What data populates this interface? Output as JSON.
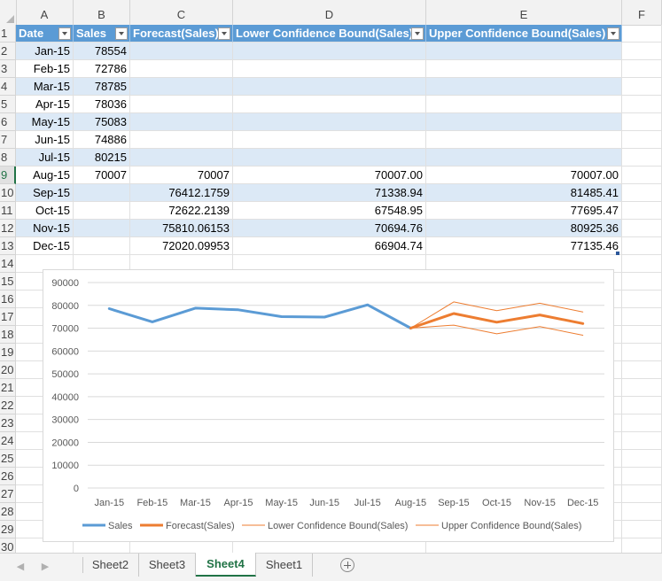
{
  "columns": [
    "A",
    "B",
    "C",
    "D",
    "E",
    "F"
  ],
  "row_numbers": [
    "1",
    "2",
    "3",
    "4",
    "5",
    "6",
    "7",
    "8",
    "9",
    "10",
    "11",
    "12",
    "13",
    "14",
    "15",
    "16",
    "17",
    "18",
    "19",
    "20",
    "21",
    "22",
    "23",
    "24",
    "25",
    "26",
    "27",
    "28",
    "29",
    "30"
  ],
  "table": {
    "headers": [
      "Date",
      "Sales",
      "Forecast(Sales)",
      "Lower Confidence Bound(Sales)",
      "Upper Confidence Bound(Sales)"
    ],
    "rows": [
      [
        "Jan-15",
        "78554",
        "",
        "",
        ""
      ],
      [
        "Feb-15",
        "72786",
        "",
        "",
        ""
      ],
      [
        "Mar-15",
        "78785",
        "",
        "",
        ""
      ],
      [
        "Apr-15",
        "78036",
        "",
        "",
        ""
      ],
      [
        "May-15",
        "75083",
        "",
        "",
        ""
      ],
      [
        "Jun-15",
        "74886",
        "",
        "",
        ""
      ],
      [
        "Jul-15",
        "80215",
        "",
        "",
        ""
      ],
      [
        "Aug-15",
        "70007",
        "70007",
        "70007.00",
        "70007.00"
      ],
      [
        "Sep-15",
        "",
        "76412.1759",
        "71338.94",
        "81485.41"
      ],
      [
        "Oct-15",
        "",
        "72622.2139",
        "67548.95",
        "77695.47"
      ],
      [
        "Nov-15",
        "",
        "75810.06153",
        "70694.76",
        "80925.36"
      ],
      [
        "Dec-15",
        "",
        "72020.09953",
        "66904.74",
        "77135.46"
      ]
    ]
  },
  "selected_row": "9",
  "sheet_tabs": [
    "Sheet2",
    "Sheet3",
    "Sheet4",
    "Sheet1"
  ],
  "active_tab": "Sheet4",
  "colors": {
    "table_header": "#5b9bd5",
    "band": "#dce9f6",
    "sales_line": "#5b9bd5",
    "forecast_line": "#ed7d31",
    "active_tab_text": "#217346"
  },
  "chart_data": {
    "type": "line",
    "categories": [
      "Jan-15",
      "Feb-15",
      "Mar-15",
      "Apr-15",
      "May-15",
      "Jun-15",
      "Jul-15",
      "Aug-15",
      "Sep-15",
      "Oct-15",
      "Nov-15",
      "Dec-15"
    ],
    "y_ticks": [
      "0",
      "10000",
      "20000",
      "30000",
      "40000",
      "50000",
      "60000",
      "70000",
      "80000",
      "90000"
    ],
    "ylim": [
      0,
      90000
    ],
    "grid": true,
    "legend_position": "bottom",
    "series": [
      {
        "name": "Sales",
        "color": "#5b9bd5",
        "values": [
          78554,
          72786,
          78785,
          78036,
          75083,
          74886,
          80215,
          70007,
          null,
          null,
          null,
          null
        ]
      },
      {
        "name": "Forecast(Sales)",
        "color": "#ed7d31",
        "values": [
          null,
          null,
          null,
          null,
          null,
          null,
          null,
          70007,
          76412.1759,
          72622.2139,
          75810.06153,
          72020.09953
        ]
      },
      {
        "name": "Lower Confidence Bound(Sales)",
        "color": "#ed7d31",
        "values": [
          null,
          null,
          null,
          null,
          null,
          null,
          null,
          70007,
          71338.94,
          67548.95,
          70694.76,
          66904.74
        ]
      },
      {
        "name": "Upper Confidence Bound(Sales)",
        "color": "#ed7d31",
        "values": [
          null,
          null,
          null,
          null,
          null,
          null,
          null,
          70007,
          81485.41,
          77695.47,
          80925.36,
          77135.46
        ]
      }
    ]
  }
}
